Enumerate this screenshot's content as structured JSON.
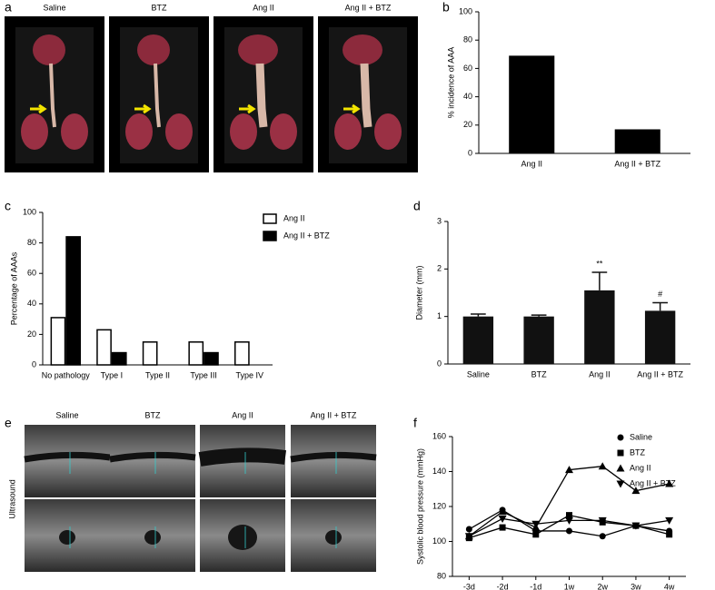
{
  "chart_data": [
    {
      "panel": "b",
      "type": "bar",
      "categories": [
        "Ang II",
        "Ang II + BTZ"
      ],
      "values": [
        69,
        17
      ],
      "color": "#000000",
      "ylabel": "% incidence of AAA",
      "ylim": [
        0,
        100
      ],
      "yticks": [
        0,
        20,
        40,
        60,
        80,
        100
      ]
    },
    {
      "panel": "c",
      "type": "bar",
      "categories": [
        "No pathology",
        "Type I",
        "Type II",
        "Type III",
        "Type IV"
      ],
      "series": [
        {
          "name": "Ang II",
          "color": "#ffffff",
          "edgecolor": "#000000",
          "values": [
            31,
            23,
            15,
            15,
            15
          ]
        },
        {
          "name": "Ang II + BTZ",
          "color": "#000000",
          "edgecolor": "#000000",
          "values": [
            84,
            8,
            0,
            8,
            0
          ]
        }
      ],
      "ylabel": "Percentage of AAAs",
      "ylim": [
        0,
        100
      ],
      "yticks": [
        0,
        20,
        40,
        60,
        80,
        100
      ],
      "legend": "top-right"
    },
    {
      "panel": "d",
      "type": "bar",
      "categories": [
        "Saline",
        "BTZ",
        "Ang II",
        "Ang II + BTZ"
      ],
      "values": [
        1.0,
        1.0,
        1.55,
        1.12
      ],
      "errors": [
        0.05,
        0.03,
        0.38,
        0.17
      ],
      "annotations": [
        null,
        null,
        "**",
        "#"
      ],
      "color": "#111111",
      "ylabel": "Diameter (mm)",
      "ylim": [
        0,
        3
      ],
      "yticks": [
        0,
        1,
        2,
        3
      ]
    },
    {
      "panel": "f",
      "type": "line",
      "categories": [
        "-3d",
        "-2d",
        "-1d",
        "1w",
        "2w",
        "3w",
        "4w"
      ],
      "series": [
        {
          "name": "Saline",
          "color": "#000000",
          "marker": "circle",
          "values": [
            107,
            118,
            106,
            106,
            103,
            109,
            106
          ]
        },
        {
          "name": "BTZ",
          "color": "#000000",
          "marker": "square",
          "values": [
            102,
            108,
            104,
            115,
            111,
            109,
            104
          ]
        },
        {
          "name": "Ang II",
          "color": "#000000",
          "marker": "triangle-up",
          "values": [
            103,
            117,
            108,
            141,
            143,
            129,
            133
          ]
        },
        {
          "name": "Ang II + BTZ",
          "color": "#000000",
          "marker": "triangle-down",
          "values": [
            103,
            113,
            110,
            112,
            112,
            109,
            112
          ]
        }
      ],
      "ylabel": "Systolic blood pressure (mmHg)",
      "ylim": [
        80,
        160
      ],
      "yticks": [
        80,
        100,
        120,
        140,
        160
      ],
      "legend": "right"
    }
  ],
  "photo_panels": [
    {
      "panel": "a",
      "labels": [
        "Saline",
        "BTZ",
        "Ang II",
        "Ang II + BTZ"
      ]
    },
    {
      "panel": "e",
      "labels": [
        "Saline",
        "BTZ",
        "Ang II",
        "Ang II + BTZ"
      ],
      "row_label": "Ultrasound"
    }
  ]
}
